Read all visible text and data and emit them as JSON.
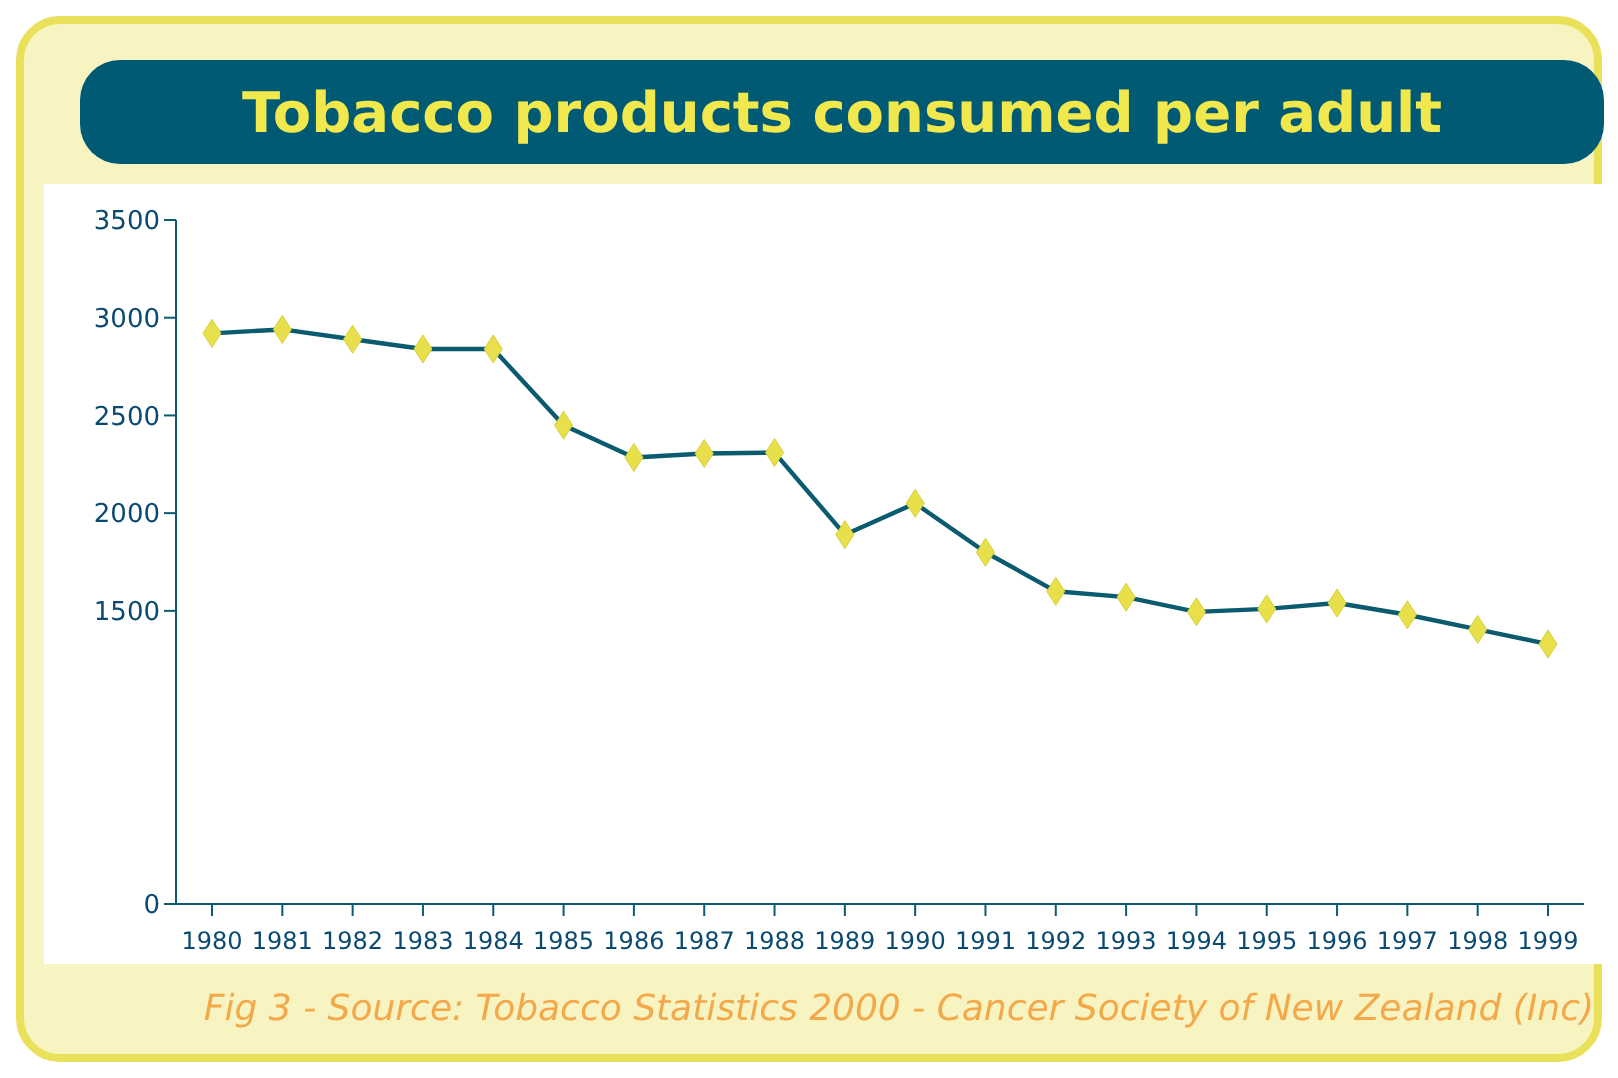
{
  "chart_data": {
    "type": "line",
    "title": "Tobacco products consumed per adult",
    "categories": [
      "1980",
      "1981",
      "1982",
      "1983",
      "1984",
      "1985",
      "1986",
      "1987",
      "1988",
      "1989",
      "1990",
      "1991",
      "1992",
      "1993",
      "1994",
      "1995",
      "1996",
      "1997",
      "1998",
      "1999"
    ],
    "series": [
      {
        "color": "#0a5a70",
        "values": [
          2920,
          2940,
          2890,
          2840,
          2840,
          2450,
          2285,
          2305,
          2310,
          1890,
          2050,
          1800,
          1600,
          1570,
          1495,
          1510,
          1540,
          1480,
          1405,
          1330
        ]
      }
    ],
    "ylim": [
      0,
      3500
    ],
    "yticks": [
      0,
      1500,
      2000,
      2500,
      3000,
      3500
    ],
    "marker": "diamond",
    "line_style": "solid",
    "grid": false,
    "legend": false,
    "annotations": [
      "Fig 3 - Source: Tobacco Statistics 2000 - Cancer Society of New Zealand (Inc)"
    ]
  }
}
